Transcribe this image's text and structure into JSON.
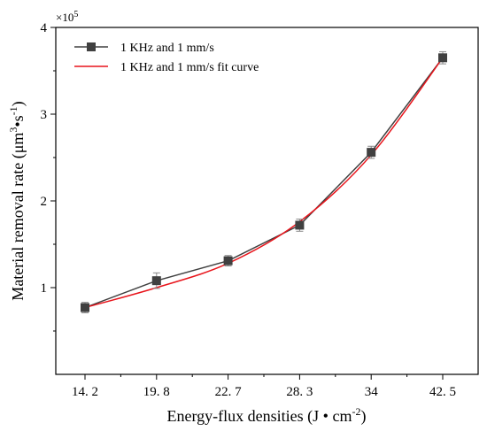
{
  "chart_data": {
    "type": "line",
    "categories": [
      "14. 2",
      "19. 8",
      "22. 7",
      "28. 3",
      "34",
      "42. 5"
    ],
    "ylim": [
      0,
      4
    ],
    "yticks": [
      "1",
      "2",
      "3",
      "4"
    ],
    "y_multiplier_base": "×10",
    "y_multiplier_exp": "5",
    "xlabel": "Energy-flux densities (J • cm",
    "xlabel_sup": "-2",
    "xlabel_tail": ")",
    "ylabel_parts": [
      "Material removal rate (μm",
      "3",
      "•s",
      "-1",
      ")"
    ],
    "legend_position": "top-left",
    "series": [
      {
        "name": "1 KHz and 1 mm/s",
        "kind": "data",
        "color": "#404040",
        "marker": "square",
        "values": [
          0.77,
          1.08,
          1.31,
          1.72,
          2.56,
          3.65
        ],
        "errors": [
          0.06,
          0.09,
          0.06,
          0.07,
          0.07,
          0.07
        ]
      },
      {
        "name": "1 KHz and 1 mm/s fit curve",
        "kind": "fit",
        "color": "#e8141b",
        "values": [
          0.77,
          1.0,
          1.28,
          1.76,
          2.53,
          3.65
        ]
      }
    ]
  }
}
